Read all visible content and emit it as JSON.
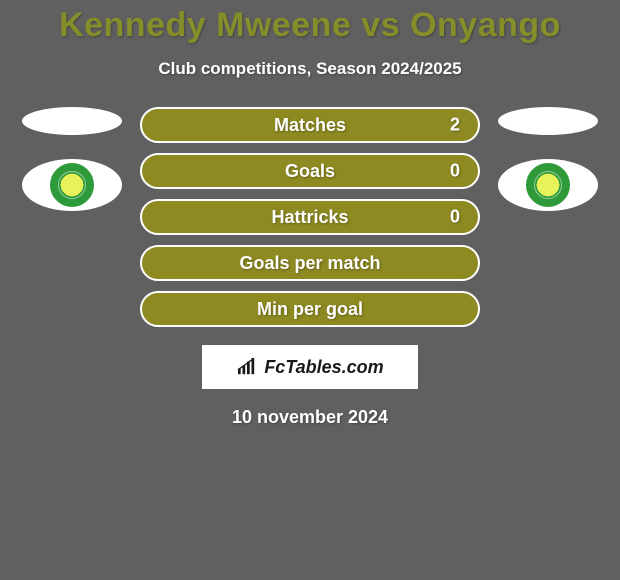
{
  "title": {
    "text": "Kennedy Mweene vs Onyango",
    "color": "#858e28"
  },
  "subtitle": {
    "text": "Club competitions, Season 2024/2025",
    "color": "#ffffff"
  },
  "stats": [
    {
      "label": "Matches",
      "value": "2",
      "show_value": true
    },
    {
      "label": "Goals",
      "value": "0",
      "show_value": true
    },
    {
      "label": "Hattricks",
      "value": "0",
      "show_value": true
    },
    {
      "label": "Goals per match",
      "value": "",
      "show_value": false
    },
    {
      "label": "Min per goal",
      "value": "",
      "show_value": false
    }
  ],
  "stat_style": {
    "pill_bg": "#8e8a22",
    "pill_border": "#ffffff",
    "text_color": "#ffffff",
    "value_color": "#ffffff"
  },
  "left_side": {
    "player_ellipse_color": "#ffffff",
    "club_badge_bg": "#ffffff"
  },
  "right_side": {
    "player_ellipse_color": "#ffffff",
    "club_badge_bg": "#ffffff"
  },
  "brand": {
    "text": "FcTables.com",
    "box_bg": "#ffffff",
    "text_color": "#1a1a1a"
  },
  "date": {
    "text": "10 november 2024",
    "color": "#ffffff"
  },
  "page_bg": "#606060"
}
